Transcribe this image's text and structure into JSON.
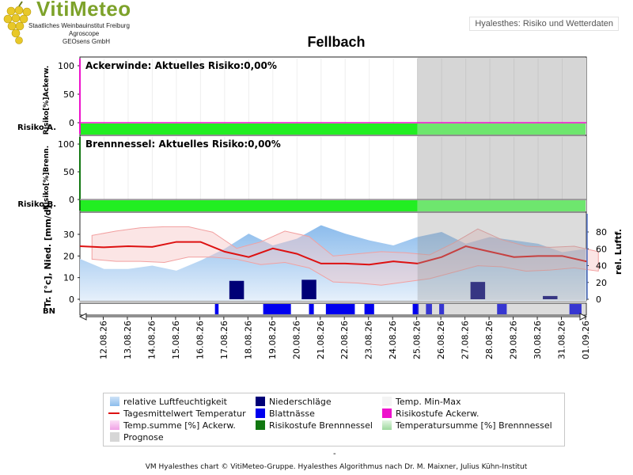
{
  "branding": {
    "name": "VitiMeteo",
    "lines": [
      "Staatliches Weinbauinstitut Freiburg",
      "Agroscope",
      "GEOsens GmbH"
    ]
  },
  "app_title": "Hyalesthes: Risiko und Wetterdaten",
  "footer_top": "-",
  "footer": "VM Hyalesthes chart © VitiMeteo-Gruppe. Hyalesthes Algorithmus nach Dr. M. Maixner, Julius Kühn-Institut",
  "colors": {
    "risk_green": "#22ee22",
    "risk_green_light": "#6ee66e",
    "magenta": "#ee11cc",
    "dark_green": "#117711",
    "temp_line": "#dd1111",
    "precip": "#000077",
    "leafwet": "#0000ee",
    "prognose_bg": "#d6d6d6"
  },
  "chart_data": [
    {
      "type": "line",
      "title": "Ackerwinde: Aktuelles Risiko:0,00%",
      "ylabel": "Risiko[%]Ackerw.",
      "row_label": "Risiko A.",
      "y_ticks": [
        0,
        50,
        100
      ],
      "ylim": [
        0,
        100
      ],
      "x": [
        "12.08.26",
        "13.08.26",
        "14.08.26",
        "15.08.26",
        "16.08.26",
        "17.08.26",
        "18.08.26",
        "19.08.26",
        "20.08.26",
        "21.08.26",
        "22.08.26",
        "23.08.26",
        "24.08.26",
        "25.08.26",
        "26.08.26",
        "27.08.26",
        "28.08.26",
        "29.08.26",
        "30.08.26",
        "31.08.26",
        "01.09.26"
      ],
      "series": [
        {
          "values": [
            0,
            0,
            0,
            0,
            0,
            0,
            0,
            0,
            0,
            0,
            0,
            0,
            0,
            0,
            0,
            0,
            0,
            0,
            0,
            0,
            0
          ]
        }
      ],
      "risk_level": "green"
    },
    {
      "type": "line",
      "title": "Brennnessel: Aktuelles Risiko:0,00%",
      "ylabel": "Risiko[%]Brenn.",
      "row_label": "Risiko B.",
      "y_ticks": [
        0,
        50,
        100
      ],
      "ylim": [
        0,
        100
      ],
      "x": [
        "12.08.26",
        "13.08.26",
        "14.08.26",
        "15.08.26",
        "16.08.26",
        "17.08.26",
        "18.08.26",
        "19.08.26",
        "20.08.26",
        "21.08.26",
        "22.08.26",
        "23.08.26",
        "24.08.26",
        "25.08.26",
        "26.08.26",
        "27.08.26",
        "28.08.26",
        "29.08.26",
        "30.08.26",
        "31.08.26",
        "01.09.26"
      ],
      "series": [
        {
          "values": [
            0,
            0,
            0,
            0,
            0,
            0,
            0,
            0,
            0,
            0,
            0,
            0,
            0,
            0,
            0,
            0,
            0,
            0,
            0,
            0,
            0
          ]
        }
      ],
      "risk_level": "green"
    },
    {
      "type": "line",
      "ylabel_left": "Tr. [°c], Nied. [mm/d]",
      "ylabel_right": "rel. Luftf.",
      "y_ticks_left": [
        0,
        10,
        20,
        30
      ],
      "y_ticks_right": [
        0,
        20,
        40,
        60,
        80
      ],
      "ylim_left": [
        0,
        35
      ],
      "ylim_right": [
        0,
        95
      ],
      "bn_label": "BN",
      "x_labels": [
        "12.08.26",
        "13.08.26",
        "14.08.26",
        "15.08.26",
        "16.08.26",
        "17.08.26",
        "18.08.26",
        "19.08.26",
        "20.08.26",
        "21.08.26",
        "22.08.26",
        "23.08.26",
        "24.08.26",
        "25.08.26",
        "26.08.26",
        "27.08.26",
        "28.08.26",
        "29.08.26",
        "30.08.26",
        "31.08.26",
        "01.09.26"
      ],
      "x_days": [
        0,
        1,
        2,
        3,
        4,
        5,
        6,
        7,
        8,
        9,
        10,
        11,
        12,
        13,
        14,
        15,
        16,
        17,
        18,
        19,
        20,
        21
      ],
      "temp_mean": [
        24.5,
        24.0,
        24.5,
        24.2,
        26.5,
        26.5,
        22.0,
        19.5,
        23.5,
        21.0,
        16.5,
        16.5,
        16.0,
        17.5,
        16.5,
        19.5,
        24.5,
        22.0,
        19.5,
        20.0,
        20.0,
        17.5
      ],
      "temp_max": [
        29.5,
        31.5,
        33.0,
        33.5,
        33.5,
        31.0,
        23.5,
        26.5,
        31.5,
        29.0,
        20.0,
        21.0,
        22.0,
        21.5,
        20.5,
        26.0,
        32.5,
        27.5,
        24.5,
        24.0,
        24.5,
        22.0
      ],
      "temp_min": [
        18.5,
        17.5,
        17.5,
        17.0,
        19.5,
        19.5,
        18.5,
        16.0,
        17.0,
        14.5,
        8.0,
        7.5,
        6.5,
        8.0,
        9.5,
        12.5,
        15.5,
        15.0,
        13.0,
        13.5,
        14.5,
        13.0
      ],
      "humidity": [
        48,
        36,
        36,
        40,
        34,
        46,
        60,
        78,
        64,
        72,
        88,
        78,
        70,
        64,
        74,
        80,
        66,
        74,
        70,
        66,
        56,
        60
      ],
      "precip": [
        0,
        0,
        0,
        0,
        0,
        0,
        8.5,
        0,
        0,
        9.0,
        0,
        0,
        0,
        0,
        0,
        0,
        8.0,
        0,
        0,
        1.5,
        0
      ],
      "leaf_wetness": [
        {
          "start": 5.6,
          "end": 5.75
        },
        {
          "start": 7.6,
          "end": 8.75
        },
        {
          "start": 9.5,
          "end": 9.7
        },
        {
          "start": 10.2,
          "end": 11.4
        },
        {
          "start": 11.8,
          "end": 12.2
        },
        {
          "start": 13.8,
          "end": 14.05
        },
        {
          "start": 14.35,
          "end": 14.6
        },
        {
          "start": 14.9,
          "end": 15.1
        },
        {
          "start": 17.3,
          "end": 17.7
        },
        {
          "start": 20.3,
          "end": 20.8
        }
      ],
      "prognose_start": "26.08.26"
    }
  ],
  "legend": [
    {
      "label": "relative Luftfeuchtigkeit",
      "kind": "gradient-blue"
    },
    {
      "label": "Niederschläge",
      "kind": "swatch",
      "color": "#000077"
    },
    {
      "label": "Temp. Min-Max",
      "kind": "swatch",
      "color": "#f4f4f4"
    },
    {
      "label": "Tagesmittelwert Temperatur",
      "kind": "line",
      "color": "#dd1111"
    },
    {
      "label": "Blattnässe",
      "kind": "swatch",
      "color": "#0000ee"
    },
    {
      "label": "Risikostufe Ackerw.",
      "kind": "swatch",
      "color": "#ee11cc"
    },
    {
      "label": "Temp.summe [%] Ackerw.",
      "kind": "gradient-pink"
    },
    {
      "label": "Risikostufe Brennnessel",
      "kind": "swatch",
      "color": "#117711"
    },
    {
      "label": "Temperatursumme [%] Brennnessel",
      "kind": "gradient-green"
    },
    {
      "label": "Prognose",
      "kind": "swatch",
      "color": "#d6d6d6"
    }
  ]
}
